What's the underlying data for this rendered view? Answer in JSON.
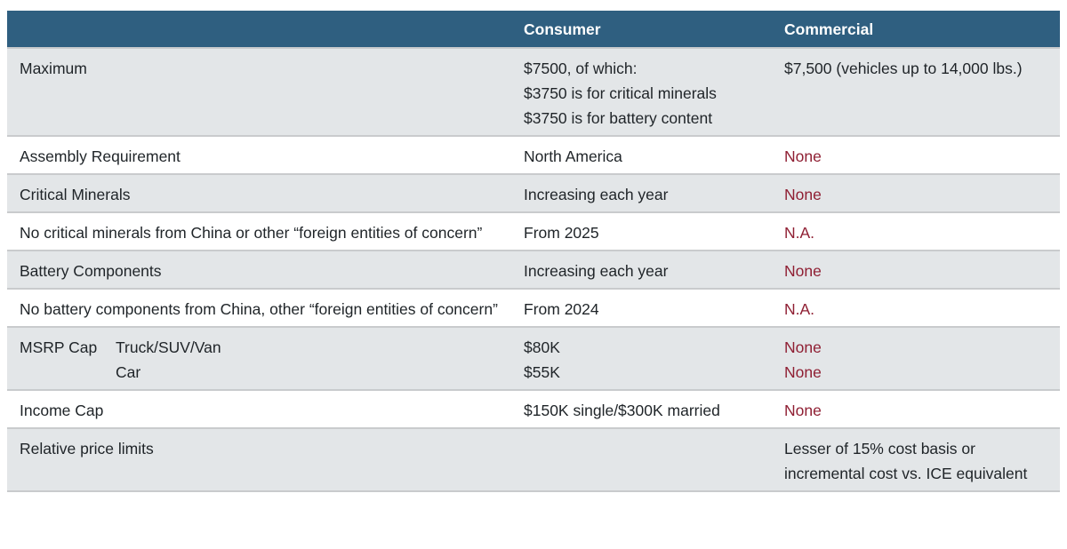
{
  "colors": {
    "header_bg": "#2f5f80",
    "header_text": "#ffffff",
    "row_alt_bg": "#e3e6e8",
    "row_bg": "#ffffff",
    "text": "#1f2428",
    "accent_red": "#8f1f33",
    "border": "#c9cbcd"
  },
  "table": {
    "columns": {
      "consumer": "Consumer",
      "commercial": "Commercial"
    },
    "rows": [
      {
        "label": "Maximum",
        "consumer": [
          "$7500, of which:",
          "$3750 is for critical minerals",
          "$3750 is for battery content"
        ],
        "commercial": [
          "$7,500 (vehicles up to 14,000 lbs.)"
        ]
      },
      {
        "label": "Assembly Requirement",
        "consumer": [
          "North America"
        ],
        "commercial": [
          "None"
        ]
      },
      {
        "label": "Critical Minerals",
        "consumer": [
          "Increasing each year"
        ],
        "commercial": [
          "None"
        ]
      },
      {
        "label": "No critical minerals from China or other “foreign entities of concern”",
        "consumer": [
          "From 2025"
        ],
        "commercial": [
          "N.A."
        ]
      },
      {
        "label": "Battery Components",
        "consumer": [
          "Increasing each year"
        ],
        "commercial": [
          "None"
        ]
      },
      {
        "label": "No battery components from China, other “foreign entities of concern”",
        "consumer": [
          "From 2024"
        ],
        "commercial": [
          "N.A."
        ]
      },
      {
        "label": "MSRP Cap",
        "sublabels": [
          "Truck/SUV/Van",
          "Car"
        ],
        "consumer": [
          "$80K",
          "$55K"
        ],
        "commercial": [
          "None",
          "None"
        ]
      },
      {
        "label": "Income Cap",
        "consumer": [
          "$150K single/$300K married"
        ],
        "commercial": [
          "None"
        ]
      },
      {
        "label": "Relative price limits",
        "consumer": [],
        "commercial": [
          "Lesser of 15% cost basis or incremental cost vs. ICE equivalent"
        ]
      }
    ]
  }
}
